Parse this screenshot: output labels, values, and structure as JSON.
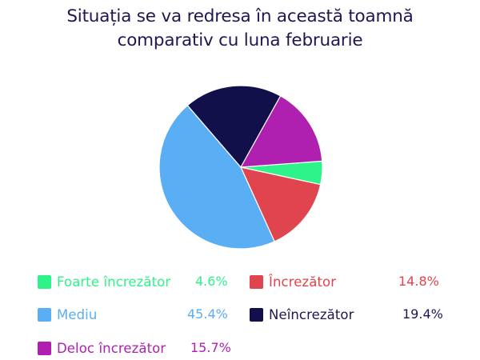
{
  "chart_data": {
    "type": "pie",
    "title_lines": [
      "Situația se va redresa în această toamnă",
      "comparativ cu luna februarie"
    ],
    "slices": [
      {
        "label": "Foarte încrezător",
        "value": 4.6,
        "value_label": "4.6%",
        "color": "#2ef28a"
      },
      {
        "label": "Încrezător",
        "value": 14.8,
        "value_label": "14.8%",
        "color": "#e0444e"
      },
      {
        "label": "Mediu",
        "value": 45.4,
        "value_label": "45.4%",
        "color": "#5aaef4"
      },
      {
        "label": "Neîncrezător",
        "value": 19.4,
        "value_label": "19.4%",
        "color": "#12104a"
      },
      {
        "label": "Deloc încrezător",
        "value": 15.7,
        "value_label": "15.7%",
        "color": "#b020b0"
      }
    ],
    "legend_position": "bottom"
  }
}
